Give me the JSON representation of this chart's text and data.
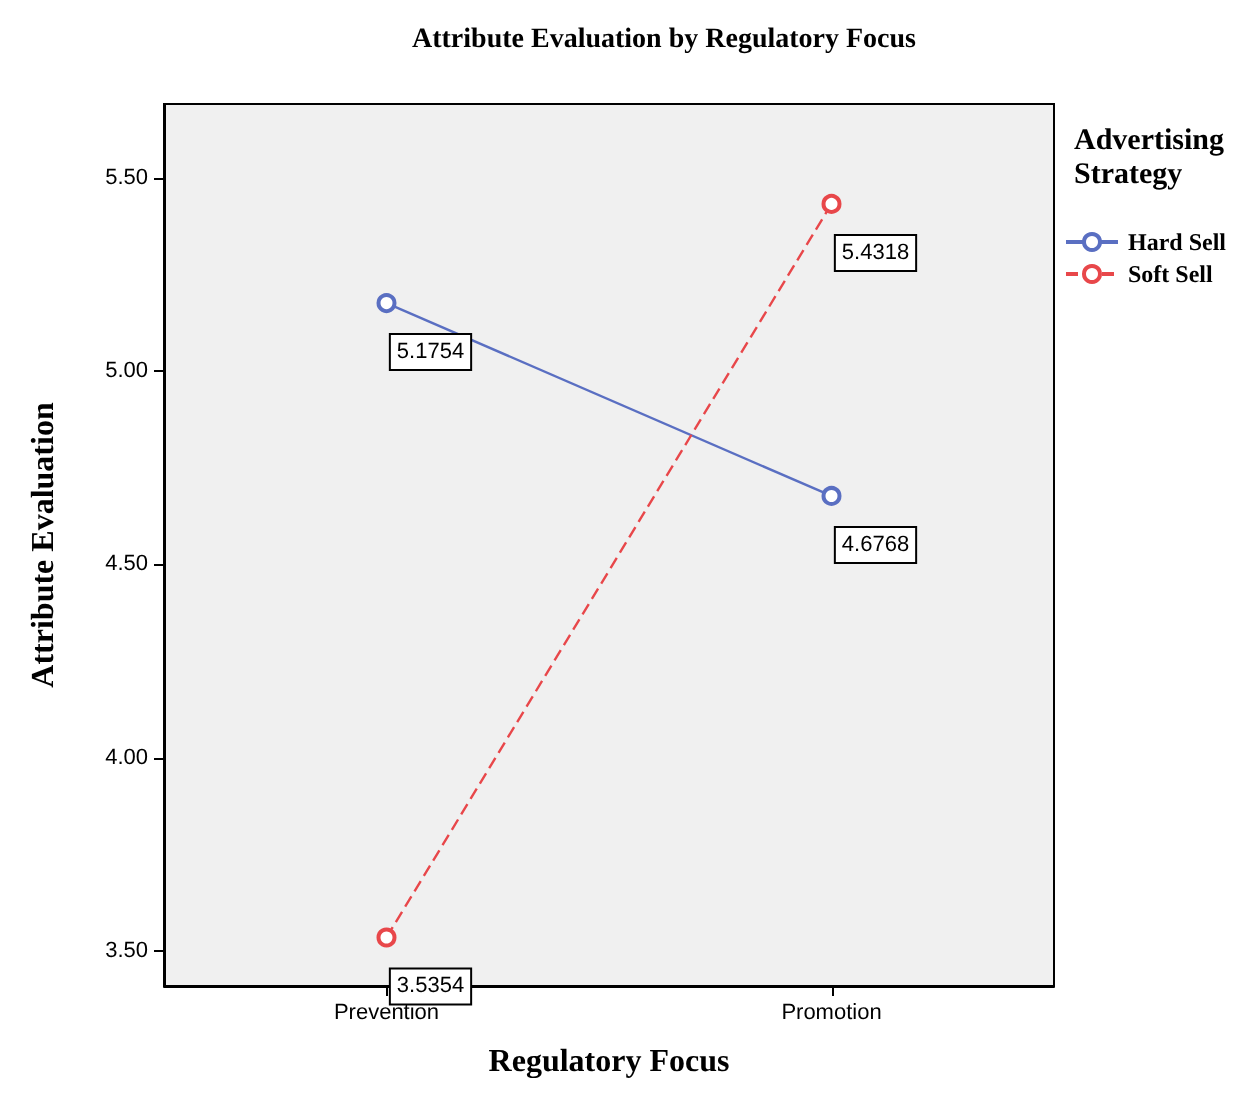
{
  "chart_data": {
    "type": "line",
    "title": "Attribute Evaluation by Regulatory Focus",
    "xlabel": "Regulatory Focus",
    "ylabel": "Attribute Evaluation",
    "legend_title": "Advertising Strategy",
    "categories": [
      "Prevention",
      "Promotion"
    ],
    "series": [
      {
        "name": "Hard Sell",
        "color": "#5a6fc2",
        "values": [
          5.1754,
          4.6768
        ],
        "line_style": "solid"
      },
      {
        "name": "Soft Sell",
        "color": "#e8474a",
        "values": [
          3.5354,
          5.4318
        ],
        "line_style": "dashed"
      }
    ],
    "ylim": [
      3.41,
      5.69
    ],
    "yticks": [
      {
        "value": 3.5,
        "label": "3.50"
      },
      {
        "value": 4,
        "label": "4.00"
      },
      {
        "value": 4.5,
        "label": "4.50"
      },
      {
        "value": 5,
        "label": "5.00"
      },
      {
        "value": 5.5,
        "label": "5.50"
      }
    ],
    "grid": false,
    "legend": "right",
    "marker": "circle",
    "data_labels": true
  }
}
